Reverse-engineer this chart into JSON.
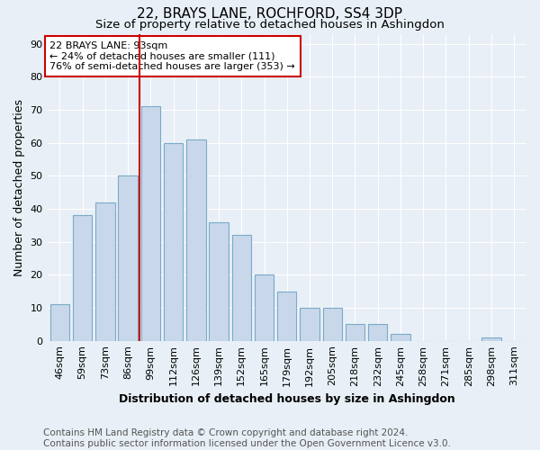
{
  "title": "22, BRAYS LANE, ROCHFORD, SS4 3DP",
  "subtitle": "Size of property relative to detached houses in Ashingdon",
  "xlabel": "Distribution of detached houses by size in Ashingdon",
  "ylabel": "Number of detached properties",
  "categories": [
    "46sqm",
    "59sqm",
    "73sqm",
    "86sqm",
    "99sqm",
    "112sqm",
    "126sqm",
    "139sqm",
    "152sqm",
    "165sqm",
    "179sqm",
    "192sqm",
    "205sqm",
    "218sqm",
    "232sqm",
    "245sqm",
    "258sqm",
    "271sqm",
    "285sqm",
    "298sqm",
    "311sqm"
  ],
  "values": [
    11,
    38,
    42,
    50,
    71,
    60,
    61,
    36,
    32,
    20,
    15,
    10,
    10,
    5,
    5,
    2,
    0,
    0,
    0,
    1,
    0
  ],
  "bar_color": "#c8d8ea",
  "bar_edge_color": "#7aaac8",
  "vline_x_index": 4,
  "vline_color": "#cc0000",
  "annotation_text": "22 BRAYS LANE: 93sqm\n← 24% of detached houses are smaller (111)\n76% of semi-detached houses are larger (353) →",
  "annotation_box_color": "#ffffff",
  "annotation_box_edge": "#cc0000",
  "ylim": [
    0,
    93
  ],
  "yticks": [
    0,
    10,
    20,
    30,
    40,
    50,
    60,
    70,
    80,
    90
  ],
  "footer": "Contains HM Land Registry data © Crown copyright and database right 2024.\nContains public sector information licensed under the Open Government Licence v3.0.",
  "bg_color": "#e8eff6",
  "grid_color": "#ffffff",
  "title_fontsize": 11,
  "subtitle_fontsize": 9.5,
  "axis_label_fontsize": 9,
  "tick_fontsize": 8,
  "footer_fontsize": 7.5
}
